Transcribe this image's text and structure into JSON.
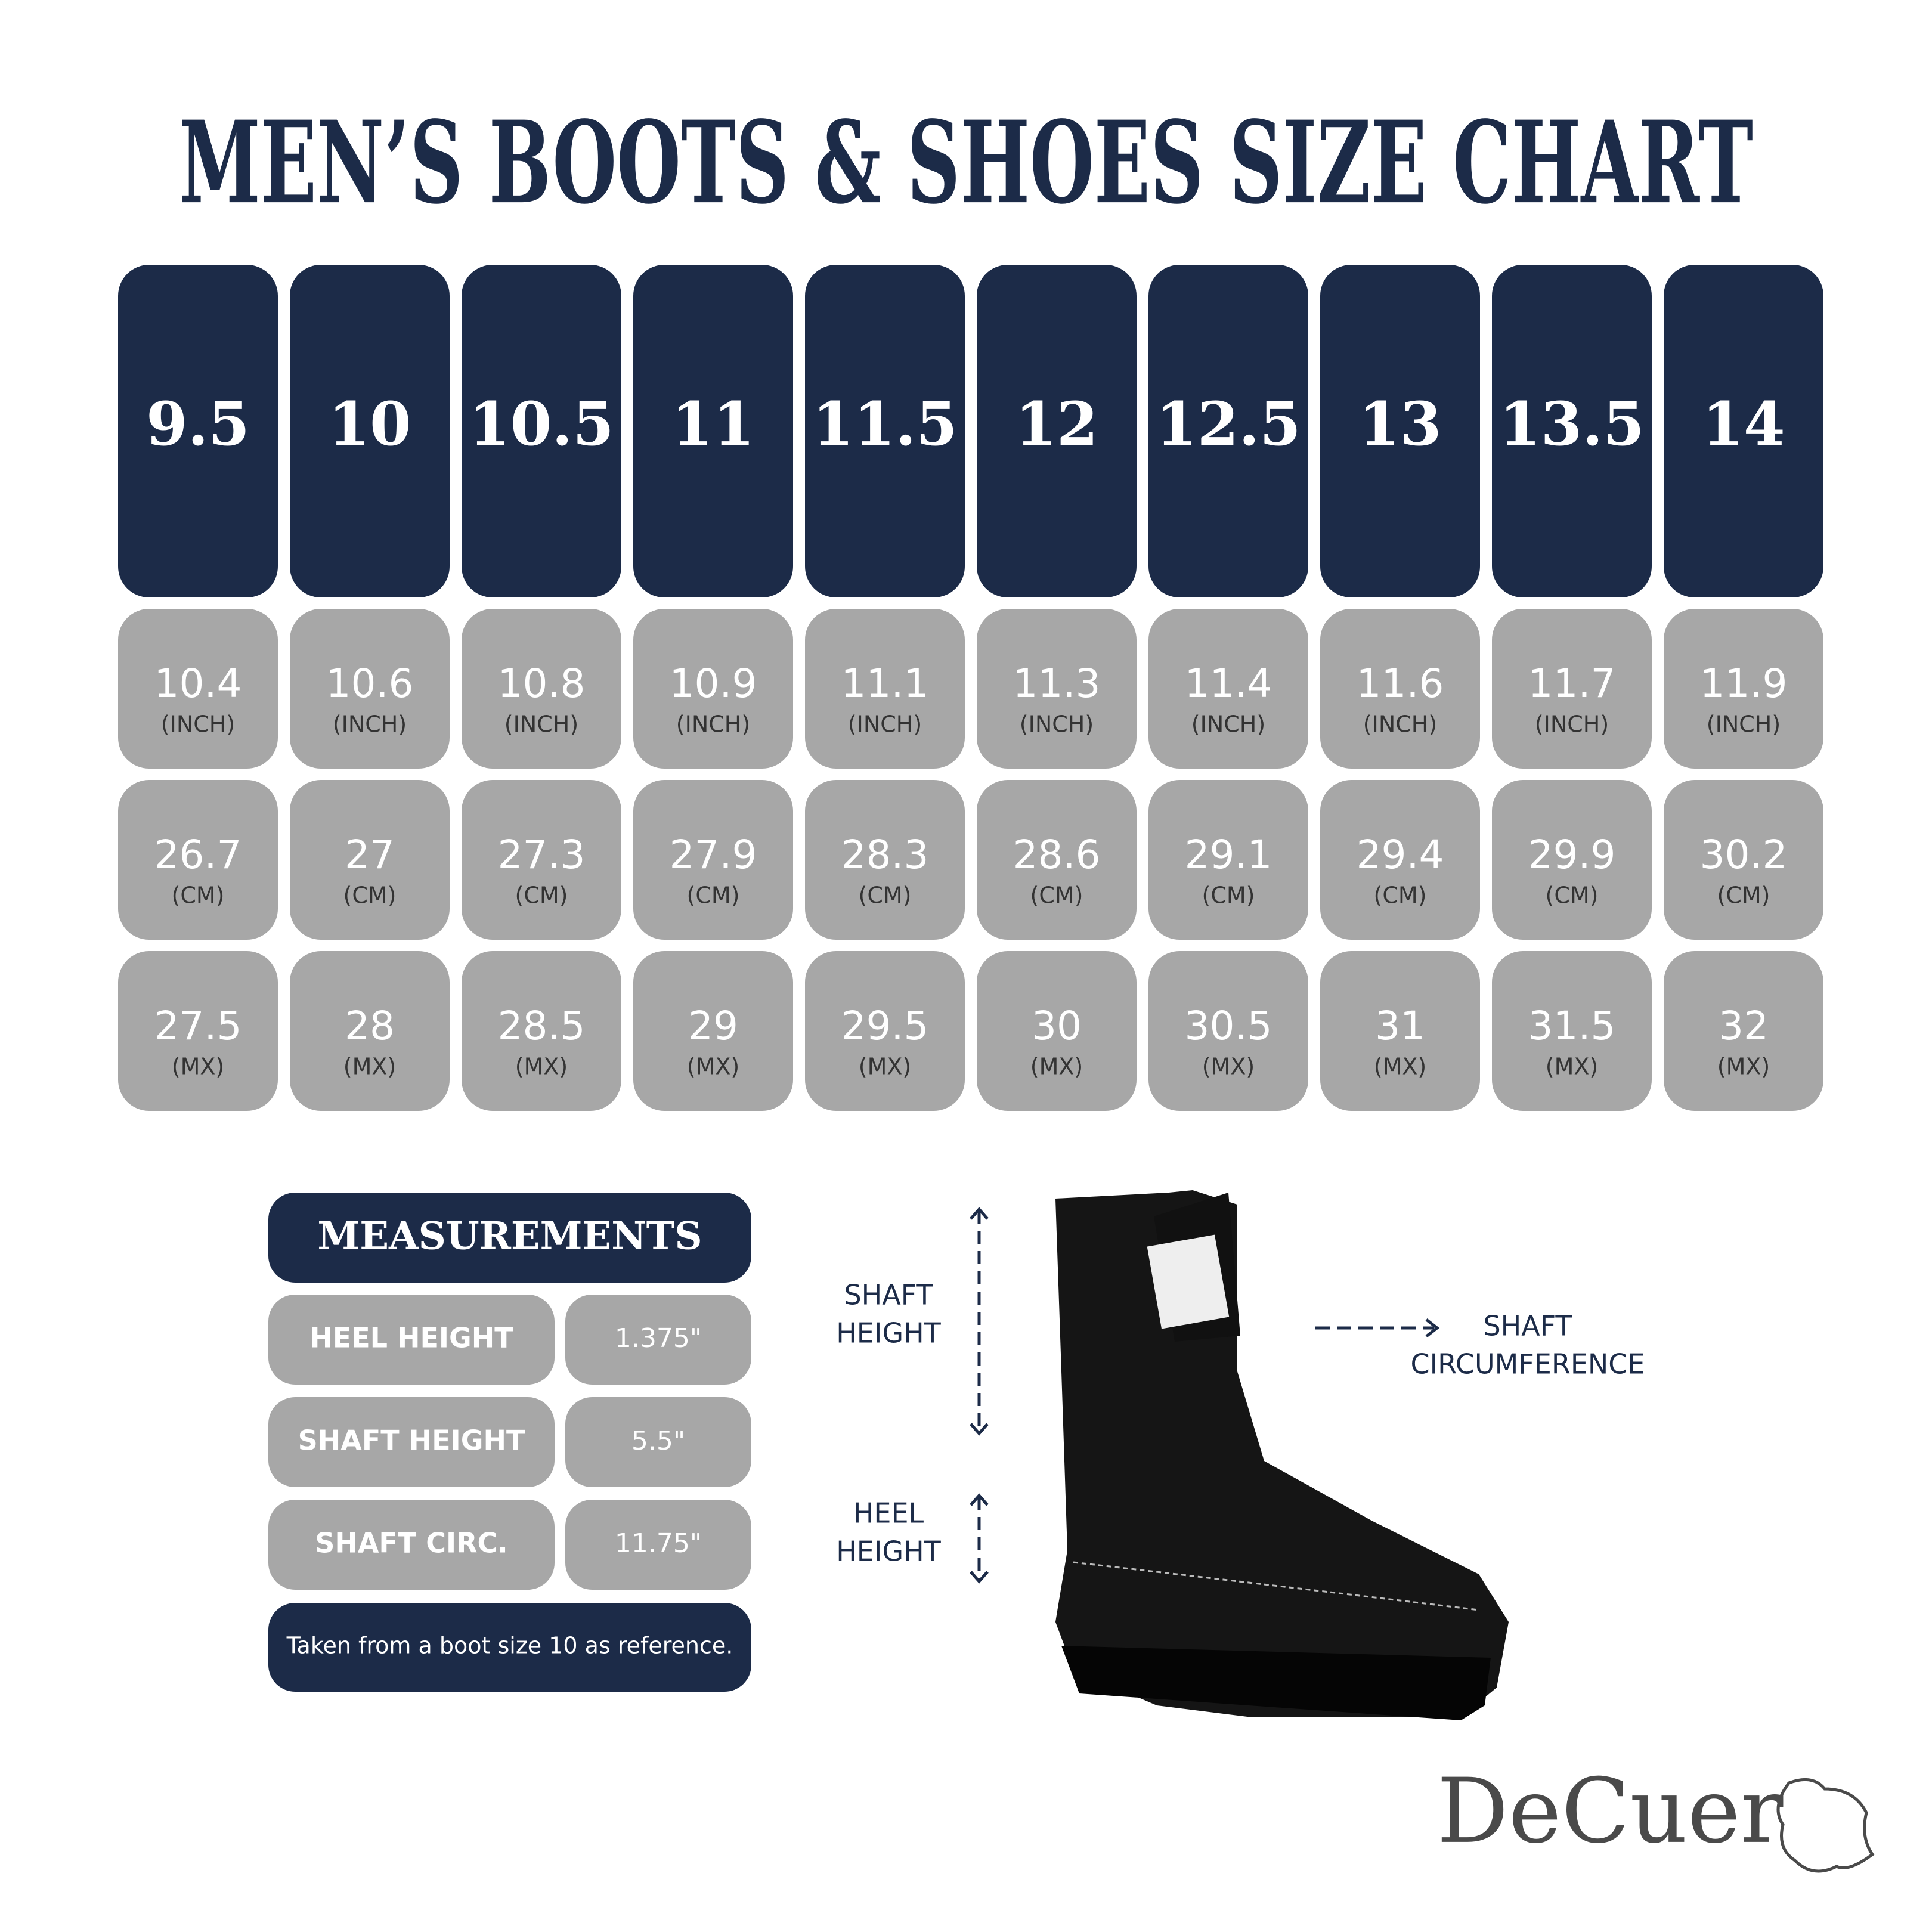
{
  "title": "MEN’S BOOTS & SHOES SIZE CHART",
  "size_chart": {
    "units": {
      "inch": "(INCH)",
      "cm": "(CM)",
      "mx": "(MX)"
    },
    "columns": [
      {
        "size": "9.5",
        "inch": "10.4",
        "cm": "26.7",
        "mx": "27.5"
      },
      {
        "size": "10",
        "inch": "10.6",
        "cm": "27",
        "mx": "28"
      },
      {
        "size": "10.5",
        "inch": "10.8",
        "cm": "27.3",
        "mx": "28.5"
      },
      {
        "size": "11",
        "inch": "10.9",
        "cm": "27.9",
        "mx": "29"
      },
      {
        "size": "11.5",
        "inch": "11.1",
        "cm": "28.3",
        "mx": "29.5"
      },
      {
        "size": "12",
        "inch": "11.3",
        "cm": "28.6",
        "mx": "30"
      },
      {
        "size": "12.5",
        "inch": "11.4",
        "cm": "29.1",
        "mx": "30.5"
      },
      {
        "size": "13",
        "inch": "11.6",
        "cm": "29.4",
        "mx": "31"
      },
      {
        "size": "13.5",
        "inch": "11.7",
        "cm": "29.9",
        "mx": "31.5"
      },
      {
        "size": "14",
        "inch": "11.9",
        "cm": "30.2",
        "mx": "32"
      }
    ]
  },
  "measurements": {
    "header": "MEASUREMENTS",
    "rows": [
      [
        "HEEL HEIGHT",
        "1.375\""
      ],
      [
        "SHAFT HEIGHT",
        "5.5\""
      ],
      [
        "SHAFT CIRC.",
        "11.75\""
      ]
    ],
    "note": "Taken from a boot size 10 as reference."
  },
  "diagram": {
    "shaft_height": [
      "SHAFT",
      "HEIGHT"
    ],
    "heel_height": [
      "HEEL",
      "HEIGHT"
    ],
    "shaft_circumference": [
      "SHAFT",
      "CIRCUMFERENCE"
    ]
  },
  "logo": "DeCuer"
}
